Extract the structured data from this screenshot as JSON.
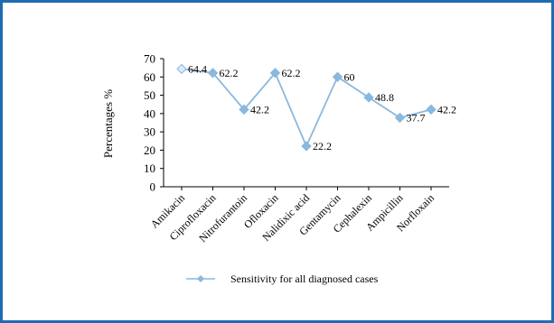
{
  "chart_data": {
    "type": "line",
    "title": "",
    "xlabel": "",
    "ylabel": "Percentages  %",
    "ylim": [
      0,
      70
    ],
    "yticks": [
      0,
      10,
      20,
      30,
      40,
      50,
      60,
      70
    ],
    "grid": false,
    "legend_position": "bottom",
    "categories": [
      "Amikacin",
      "Ciprofloxacin",
      "Nitrofurantoin",
      "Ofloxacin",
      "Nalidixic acid",
      "Gentamycin",
      "Cephalexin",
      "Ampicillin",
      "Norfloxain"
    ],
    "series": [
      {
        "name": "Sensitivity for all diagnosed cases",
        "values": [
          64.4,
          62.2,
          42.2,
          62.2,
          22.2,
          60,
          48.8,
          37.7,
          42.2
        ],
        "labels": [
          "64.4",
          "62.2",
          "42.2",
          "62.2",
          "22.2",
          "60",
          "48.8",
          "37.7",
          "42.2"
        ],
        "color": "#8ab8de"
      }
    ]
  },
  "colors": {
    "frame_border": "#1f6bb3",
    "axis": "#000000"
  }
}
